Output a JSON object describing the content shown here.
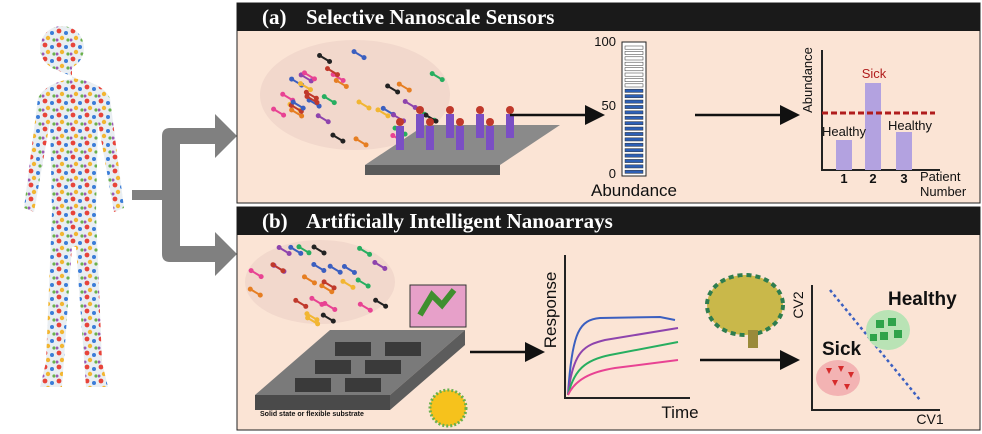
{
  "panel_a": {
    "label": "(a)",
    "title": "Selective Nanoscale Sensors",
    "gauge": {
      "ticks": [
        100,
        50,
        0
      ],
      "label": "Abundance"
    },
    "chart": {
      "y_label": "Abundance",
      "sick_label": "Sick",
      "healthy_labels": [
        "Healthy",
        "Healthy"
      ],
      "x_ticks": [
        1,
        2,
        3
      ],
      "x_label": [
        "Patient",
        "Number"
      ]
    }
  },
  "panel_b": {
    "label": "(b)",
    "title": "Artificially Intelligent Nanoarrays",
    "substrate_label": "Solid state or flexible substrate",
    "response_plot": {
      "y_label": "Response",
      "x_label": "Time"
    },
    "cv_plot": {
      "y_label": "CV2",
      "x_label": "CV1",
      "healthy_label": "Healthy",
      "sick_label": "Sick"
    }
  }
}
